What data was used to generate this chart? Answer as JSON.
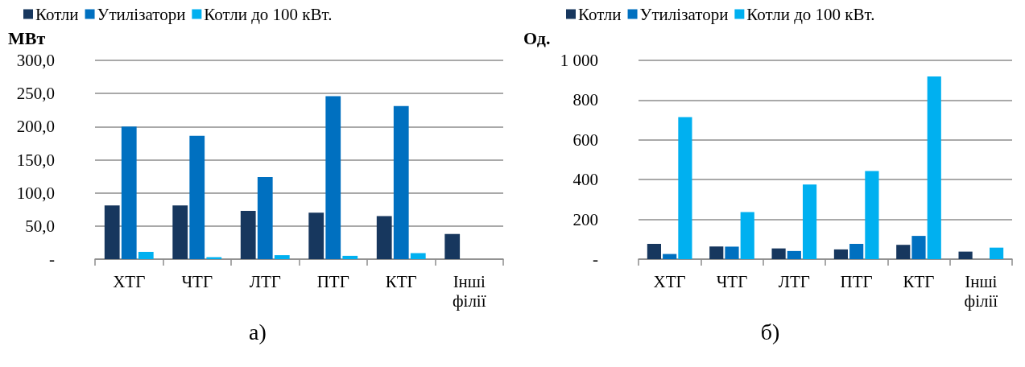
{
  "chart_data": [
    {
      "type": "bar",
      "ylabel": "МВт",
      "categories": [
        "ХТГ",
        "ЧТГ",
        "ЛТГ",
        "ПТГ",
        "КТГ",
        "Інші філії"
      ],
      "series": [
        {
          "name": "Котли",
          "color": "#17375e",
          "values": [
            81,
            81,
            73,
            70,
            65,
            38
          ]
        },
        {
          "name": "Утилізатори",
          "color": "#0070c0",
          "values": [
            200,
            186,
            124,
            246,
            231,
            0
          ]
        },
        {
          "name": "Котли до 100 кВт.",
          "color": "#00b0f0",
          "values": [
            11,
            3,
            6,
            5,
            9,
            0
          ]
        }
      ],
      "ylim": [
        0,
        300
      ],
      "yticks": [
        {
          "value": 0,
          "label": "-"
        },
        {
          "value": 50,
          "label": "50,0"
        },
        {
          "value": 100,
          "label": "100,0"
        },
        {
          "value": 150,
          "label": "150,0"
        },
        {
          "value": 200,
          "label": "200,0"
        },
        {
          "value": 250,
          "label": "250,0"
        },
        {
          "value": 300,
          "label": "300,0"
        }
      ],
      "grid": "y",
      "legend": "top",
      "annotations": [
        "а)"
      ]
    },
    {
      "type": "bar",
      "ylabel": "Од.",
      "categories": [
        "ХТГ",
        "ЧТГ",
        "ЛТГ",
        "ПТГ",
        "КТГ",
        "Інші філії"
      ],
      "series": [
        {
          "name": "Котли",
          "color": "#17375e",
          "values": [
            77,
            64,
            54,
            49,
            72,
            38
          ]
        },
        {
          "name": "Утилізатори",
          "color": "#0070c0",
          "values": [
            26,
            63,
            41,
            77,
            117,
            0
          ]
        },
        {
          "name": "Котли до 100 кВт.",
          "color": "#00b0f0",
          "values": [
            715,
            237,
            376,
            443,
            919,
            58
          ]
        }
      ],
      "ylim": [
        0,
        1000
      ],
      "yticks": [
        {
          "value": 0,
          "label": "-"
        },
        200,
        400,
        600,
        800,
        {
          "value": 1000,
          "label": "1 000"
        }
      ],
      "grid": "y",
      "legend": "top",
      "annotations": [
        "б)"
      ]
    }
  ]
}
